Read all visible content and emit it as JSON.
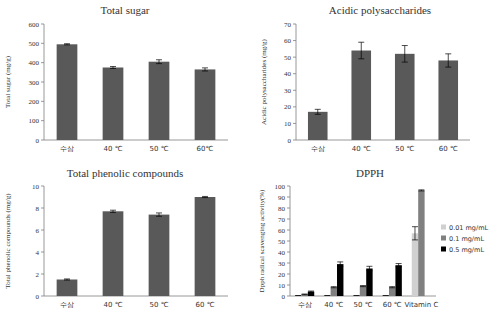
{
  "chart_data": [
    {
      "type": "bar",
      "title": "Total sugar",
      "y_label": "Total sugar (mg/g)",
      "categories": [
        "수삼",
        "40 ℃",
        "50 ℃",
        "60℃"
      ],
      "values": [
        495,
        375,
        405,
        365
      ],
      "errors": [
        3,
        5,
        10,
        8
      ],
      "color": "#595959",
      "ylim": [
        0,
        600
      ],
      "yticks": [
        0,
        100,
        200,
        300,
        400,
        500,
        600
      ],
      "grid": false
    },
    {
      "type": "bar",
      "title": "Acidic polysaccharides",
      "y_label": "Acidic polysaccharides (mg/g)",
      "categories": [
        "수삼",
        "40 ℃",
        "50 ℃",
        "60 ℃"
      ],
      "values": [
        17,
        54,
        52,
        48
      ],
      "errors": [
        1.5,
        5,
        5,
        4
      ],
      "color": "#595959",
      "ylim": [
        0,
        70
      ],
      "yticks": [
        0,
        10,
        20,
        30,
        40,
        50,
        60,
        70
      ],
      "grid": false
    },
    {
      "type": "bar",
      "title": "Total phenolic compounds",
      "y_label": "Total phenolic compounds (mg/g)",
      "categories": [
        "수삼",
        "40 ℃",
        "50 ℃",
        "60 ℃"
      ],
      "values": [
        1.5,
        7.7,
        7.4,
        9.0
      ],
      "errors": [
        0.05,
        0.1,
        0.15,
        0.05
      ],
      "color": "#595959",
      "ylim": [
        0,
        10
      ],
      "yticks": [
        0,
        2,
        4,
        6,
        8,
        10
      ],
      "grid": false
    },
    {
      "type": "bar",
      "title": "DPPH",
      "y_label": "Dpph radical scavenging activity(%)",
      "categories": [
        "수삼",
        "40 ℃",
        "50 ℃",
        "60 ℃",
        "Vitamin C"
      ],
      "series": [
        {
          "name": "0.01 mg/mL",
          "color": "#d0d0d0",
          "values": [
            0.3,
            0.3,
            0.3,
            0.3,
            57
          ],
          "errors": [
            0,
            0,
            0,
            0,
            6
          ]
        },
        {
          "name": "0.1 mg/mL",
          "color": "#808080",
          "values": [
            1.5,
            8,
            9,
            8,
            96
          ],
          "errors": [
            0.3,
            0.5,
            0.5,
            0.5,
            0.5
          ]
        },
        {
          "name": "0.5 mg/mL",
          "color": "#000000",
          "values": [
            4,
            29,
            25,
            28,
            null
          ],
          "errors": [
            0.5,
            2,
            2,
            1.5,
            null
          ]
        }
      ],
      "ylim": [
        0,
        100
      ],
      "yticks": [
        0,
        10,
        20,
        30,
        40,
        50,
        60,
        70,
        80,
        90,
        100
      ],
      "grid": false,
      "legend": "right"
    }
  ]
}
